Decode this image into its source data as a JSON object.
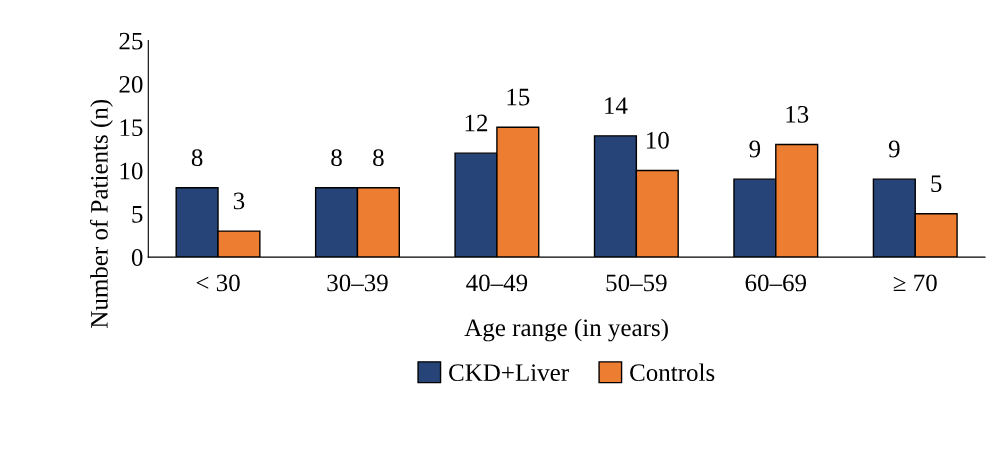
{
  "chart_data": {
    "type": "bar",
    "categories": [
      "< 30",
      "30–39",
      "40–49",
      "50–59",
      "60–69",
      "≥ 70"
    ],
    "series": [
      {
        "name": "CKD+Liver",
        "color": "#264478",
        "values": [
          8,
          8,
          12,
          14,
          9,
          9
        ]
      },
      {
        "name": "Controls",
        "color": "#ed7d31",
        "values": [
          3,
          8,
          15,
          10,
          13,
          5
        ]
      }
    ],
    "xlabel": "Age range (in years)",
    "ylabel": "Number of Patients (n)",
    "ylim": [
      0,
      25
    ],
    "yticks": [
      0,
      5,
      10,
      15,
      20,
      25
    ],
    "grid": false,
    "legend": "bottom",
    "data_labels": true
  }
}
